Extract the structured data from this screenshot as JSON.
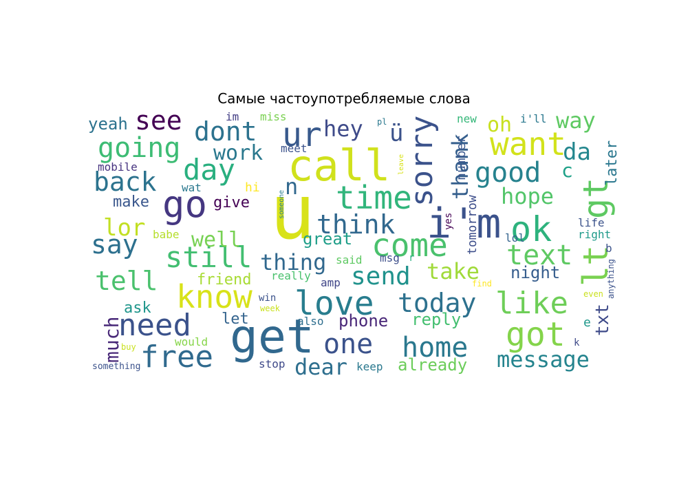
{
  "title": "Самые частоупотребляемые слова",
  "chart_data": {
    "type": "wordcloud",
    "title": "Самые частоупотребляемые слова",
    "words": [
      {
        "text": "u",
        "color": "#d8e219"
      },
      {
        "text": "call",
        "color": "#d0e11c"
      },
      {
        "text": "get",
        "color": "#31688e"
      },
      {
        "text": "i'm",
        "color": "#3b528b"
      },
      {
        "text": "go",
        "color": "#453781"
      },
      {
        "text": "ur",
        "color": "#38598c"
      },
      {
        "text": "lt",
        "color": "#7ad151"
      },
      {
        "text": "gt",
        "color": "#5ec962"
      },
      {
        "text": "ok",
        "color": "#2db27d"
      },
      {
        "text": "come",
        "color": "#4ac16d"
      },
      {
        "text": "know",
        "color": "#d8e219"
      },
      {
        "text": "love",
        "color": "#287d8e"
      },
      {
        "text": "like",
        "color": "#6ece58"
      },
      {
        "text": "got",
        "color": "#84d44b"
      },
      {
        "text": "time",
        "color": "#31b57b"
      },
      {
        "text": "sorry",
        "color": "#3b528b"
      },
      {
        "text": "want",
        "color": "#d2e21b"
      },
      {
        "text": "free",
        "color": "#306a8e"
      },
      {
        "text": "need",
        "color": "#3b528b"
      },
      {
        "text": "day",
        "color": "#29af7f"
      },
      {
        "text": "dont",
        "color": "#2c728e"
      },
      {
        "text": "today",
        "color": "#2d718e"
      },
      {
        "text": "one",
        "color": "#3b528b"
      },
      {
        "text": "home",
        "color": "#2a788e"
      },
      {
        "text": "good",
        "color": "#26828e"
      },
      {
        "text": "think",
        "color": "#31688e"
      },
      {
        "text": "see",
        "color": "#440154"
      },
      {
        "text": "going",
        "color": "#3dbc74"
      },
      {
        "text": "back",
        "color": "#2c738e"
      },
      {
        "text": "still",
        "color": "#42be71"
      },
      {
        "text": "send",
        "color": "#20928c"
      },
      {
        "text": "text",
        "color": "#5ec962"
      },
      {
        "text": "tell",
        "color": "#4ac16d"
      },
      {
        "text": "say",
        "color": "#2d708e"
      },
      {
        "text": "lor",
        "color": "#c2df23"
      },
      {
        "text": "ü",
        "color": "#3b528b"
      },
      {
        "text": "hey",
        "color": "#3e4a89"
      },
      {
        "text": "thank",
        "color": "#355f8d"
      },
      {
        "text": "da",
        "color": "#24878e"
      },
      {
        "text": "way",
        "color": "#5ec962"
      },
      {
        "text": "oh",
        "color": "#c8e020"
      },
      {
        "text": "n",
        "color": "#31688e"
      },
      {
        "text": "work",
        "color": "#2a788e"
      },
      {
        "text": "message",
        "color": "#25848e"
      },
      {
        "text": "dear",
        "color": "#2e6f8e"
      },
      {
        "text": "thing",
        "color": "#31688e"
      },
      {
        "text": "well",
        "color": "#77d153"
      },
      {
        "text": "hope",
        "color": "#52c569"
      },
      {
        "text": "take",
        "color": "#a0da39"
      },
      {
        "text": "much",
        "color": "#482878"
      },
      {
        "text": "c",
        "color": "#1fa188"
      },
      {
        "text": "txt",
        "color": "#3e4a89"
      },
      {
        "text": "phone",
        "color": "#482677"
      },
      {
        "text": "great",
        "color": "#1f9e89"
      },
      {
        "text": "yeah",
        "color": "#2c728e"
      },
      {
        "text": "make",
        "color": "#39568c"
      },
      {
        "text": "give",
        "color": "#440154"
      },
      {
        "text": "later",
        "color": "#2a778e"
      },
      {
        "text": "night",
        "color": "#365d8d"
      },
      {
        "text": "already",
        "color": "#6ccd5a"
      },
      {
        "text": "reply",
        "color": "#44bf70"
      },
      {
        "text": "friend",
        "color": "#a8db34"
      },
      {
        "text": "ask",
        "color": "#1f968b"
      },
      {
        "text": "let",
        "color": "#33638d"
      },
      {
        "text": "tomorrow",
        "color": "#3d4e8a"
      },
      {
        "text": "number",
        "color": "#39568c"
      },
      {
        "text": "mobile",
        "color": "#46337f"
      },
      {
        "text": "e",
        "color": "#1f988b"
      },
      {
        "text": "hi",
        "color": "#fde725"
      },
      {
        "text": "im",
        "color": "#433e85"
      },
      {
        "text": "miss",
        "color": "#7ad151"
      },
      {
        "text": "meet",
        "color": "#3b528b"
      },
      {
        "text": "new",
        "color": "#35b779"
      },
      {
        "text": "i'll",
        "color": "#2a788e"
      },
      {
        "text": "wat",
        "color": "#2a788e"
      },
      {
        "text": "babe",
        "color": "#b5de2b"
      },
      {
        "text": "yes",
        "color": "#440154"
      },
      {
        "text": "lol",
        "color": "#33638d"
      },
      {
        "text": "life",
        "color": "#3b528b"
      },
      {
        "text": "right",
        "color": "#1f9a8a"
      },
      {
        "text": "b",
        "color": "#3b528b"
      },
      {
        "text": "said",
        "color": "#5ec962"
      },
      {
        "text": "msg",
        "color": "#3d4e8a"
      },
      {
        "text": "r",
        "color": "#29af7f"
      },
      {
        "text": "really",
        "color": "#4ac16d"
      },
      {
        "text": "amp",
        "color": "#404688"
      },
      {
        "text": "would",
        "color": "#86d549"
      },
      {
        "text": "stop",
        "color": "#3e4989"
      },
      {
        "text": "keep",
        "color": "#2a788e"
      },
      {
        "text": "also",
        "color": "#2e6e8e"
      },
      {
        "text": "win",
        "color": "#3b528b"
      },
      {
        "text": "week",
        "color": "#cae11f"
      },
      {
        "text": "someone",
        "color": "#287d8e"
      },
      {
        "text": "pl",
        "color": "#2a788e"
      },
      {
        "text": "leave",
        "color": "#d8e219"
      },
      {
        "text": "find",
        "color": "#fde725"
      },
      {
        "text": "even",
        "color": "#cae11f"
      },
      {
        "text": "anything",
        "color": "#3b528b"
      },
      {
        "text": "k",
        "color": "#3e4a89"
      },
      {
        "text": "buy",
        "color": "#cae11f"
      },
      {
        "text": "something",
        "color": "#3b528b"
      }
    ]
  }
}
